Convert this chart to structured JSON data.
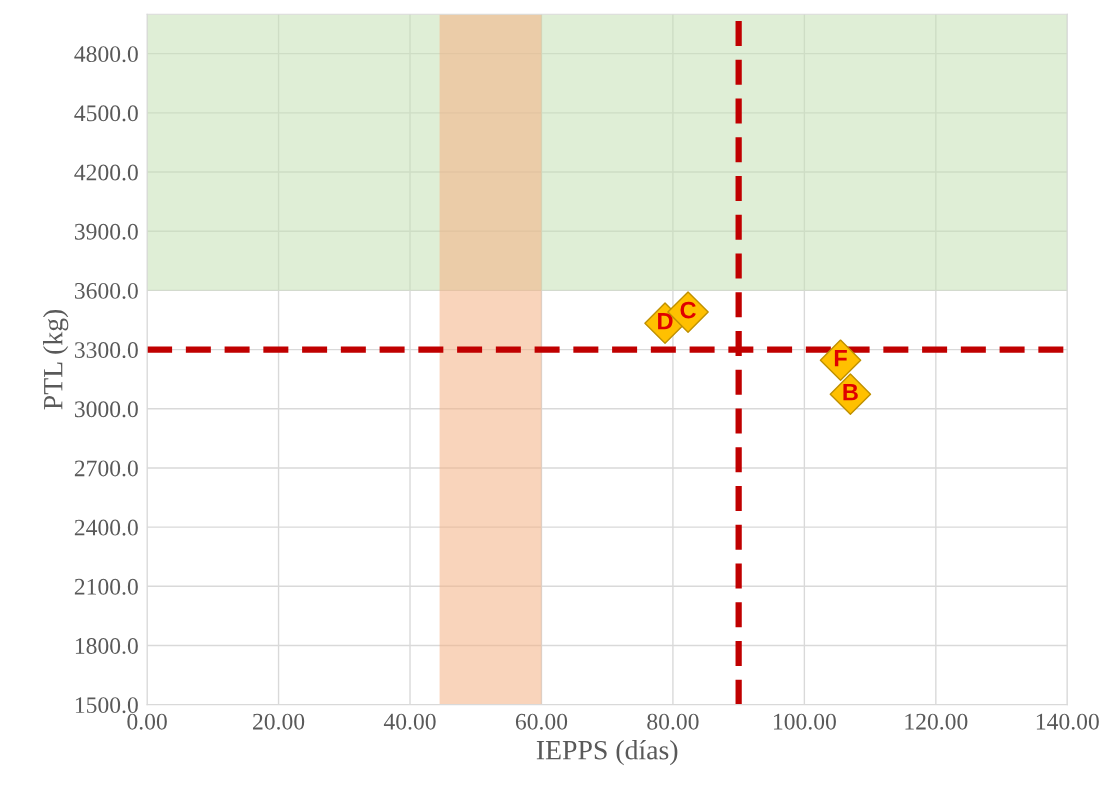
{
  "chart_data": {
    "type": "scatter",
    "xlabel": "IEPPS (días)",
    "ylabel": "PTL (kg)",
    "x": [
      78.8,
      82.3,
      105.5,
      107.0
    ],
    "series": [
      {
        "color": "#ffc000",
        "values": [
          3434,
          3490,
          3246,
          3074
        ]
      }
    ],
    "marker": "diamond",
    "annotations": [
      {
        "text": "D",
        "x": 78.8,
        "y": 3434
      },
      {
        "text": "C",
        "x": 82.3,
        "y": 3490
      },
      {
        "text": "F",
        "x": 105.5,
        "y": 3246
      },
      {
        "text": "B",
        "x": 107.0,
        "y": 3074
      }
    ],
    "xlim": [
      0,
      140
    ],
    "xticks": [
      {
        "value": 0,
        "label": "0.00"
      },
      {
        "value": 20,
        "label": "20.00"
      },
      {
        "value": 40,
        "label": "40.00"
      },
      {
        "value": 60,
        "label": "60.00"
      },
      {
        "value": 80,
        "label": "80.00"
      },
      {
        "value": 100,
        "label": "100.00"
      },
      {
        "value": 120,
        "label": "120.00"
      },
      {
        "value": 140,
        "label": "140.00"
      }
    ],
    "ylim": [
      1500,
      5000
    ],
    "yticks": [
      {
        "value": 1500,
        "label": "1500.0"
      },
      {
        "value": 1800,
        "label": "1800.0"
      },
      {
        "value": 2100,
        "label": "2100.0"
      },
      {
        "value": 2400,
        "label": "2400.0"
      },
      {
        "value": 2700,
        "label": "2700.0"
      },
      {
        "value": 3000,
        "label": "3000.0"
      },
      {
        "value": 3300,
        "label": "3300.0"
      },
      {
        "value": 3600,
        "label": "3600.0"
      },
      {
        "value": 3900,
        "label": "3900.0"
      },
      {
        "value": 4200,
        "label": "4200.0"
      },
      {
        "value": 4500,
        "label": "4500.0"
      },
      {
        "value": 4800,
        "label": "4800.0"
      }
    ],
    "ref_lines": [
      {
        "axis": "x",
        "value": 90,
        "color": "#c00000",
        "line_style": "dashed"
      },
      {
        "axis": "y",
        "value": 3300,
        "color": "#c00000",
        "line_style": "dashed"
      }
    ],
    "bands": [
      {
        "axis": "y",
        "from": 3600,
        "to": 5000,
        "color": "#c5e0b4"
      },
      {
        "axis": "x",
        "from": 44.5,
        "to": 60,
        "color": "#f4b183"
      }
    ],
    "grid": true
  }
}
